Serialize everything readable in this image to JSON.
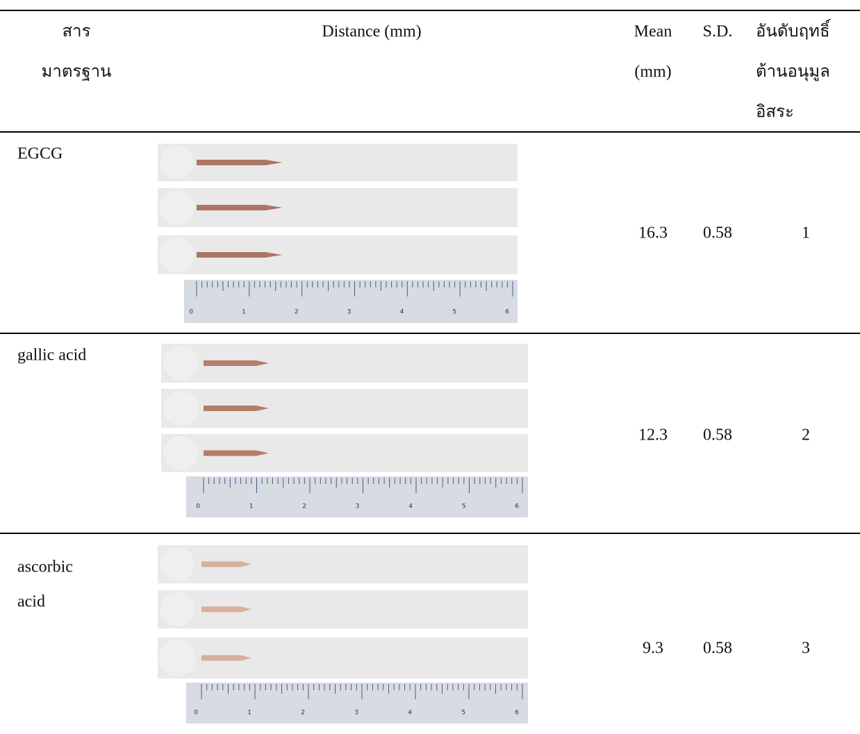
{
  "header": {
    "columns": [
      {
        "lines": [
          "สาร",
          "มาตรฐาน"
        ]
      },
      {
        "lines": [
          "Distance (mm)"
        ]
      },
      {
        "lines": [
          "Mean",
          "(mm)"
        ]
      },
      {
        "lines": [
          "S.D."
        ]
      },
      {
        "lines": [
          "อันดับฤทธิ์",
          "ต้านอนุมูล",
          "อิสระ"
        ]
      }
    ]
  },
  "table": {
    "rows": [
      {
        "name_lines": [
          "EGCG"
        ],
        "mean": 16.3,
        "sd": 0.58,
        "rank": 1
      },
      {
        "name_lines": [
          "gallic acid"
        ],
        "mean": 12.3,
        "sd": 0.58,
        "rank": 2
      },
      {
        "name_lines": [
          "ascorbic",
          "acid"
        ],
        "mean": 9.3,
        "sd": 0.58,
        "rank": 3
      }
    ]
  },
  "ruler_labels": [
    0,
    1,
    2,
    3,
    4,
    5,
    6
  ]
}
